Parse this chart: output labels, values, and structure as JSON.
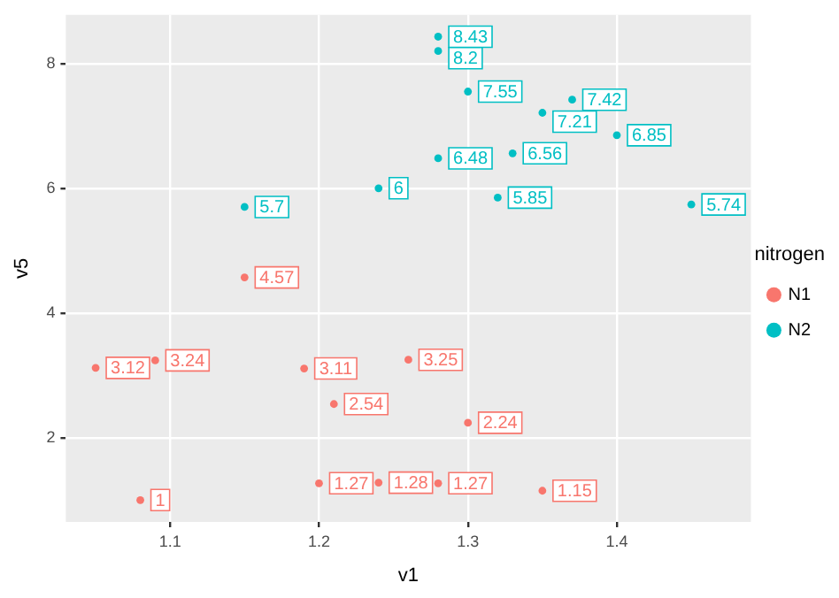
{
  "chart_data": {
    "type": "scatter",
    "xlabel": "v1",
    "ylabel": "v5",
    "legend_title": "nitrogen",
    "legend": "right",
    "grid": true,
    "marker": "circle",
    "data_labels": true,
    "xlim": [
      1.03,
      1.49
    ],
    "xticks": [
      1.1,
      1.2,
      1.3,
      1.4
    ],
    "ylim": [
      0.65,
      8.78
    ],
    "yticks": [
      2,
      4,
      6,
      8
    ],
    "series": [
      {
        "name": "N1",
        "color": "#f8766d",
        "x": [
          1.05,
          1.09,
          1.08,
          1.15,
          1.19,
          1.21,
          1.2,
          1.24,
          1.28,
          1.26,
          1.3,
          1.35
        ],
        "values": [
          3.12,
          3.24,
          1,
          4.57,
          3.11,
          2.54,
          1.27,
          1.28,
          1.27,
          3.25,
          2.24,
          1.15
        ]
      },
      {
        "name": "N2",
        "color": "#00bfc4",
        "x": [
          1.15,
          1.24,
          1.28,
          1.28,
          1.28,
          1.3,
          1.37,
          1.35,
          1.4,
          1.33,
          1.32,
          1.45
        ],
        "values": [
          5.7,
          6,
          8.43,
          8.2,
          6.48,
          7.55,
          7.42,
          7.21,
          6.85,
          6.56,
          5.85,
          5.74
        ]
      }
    ]
  }
}
